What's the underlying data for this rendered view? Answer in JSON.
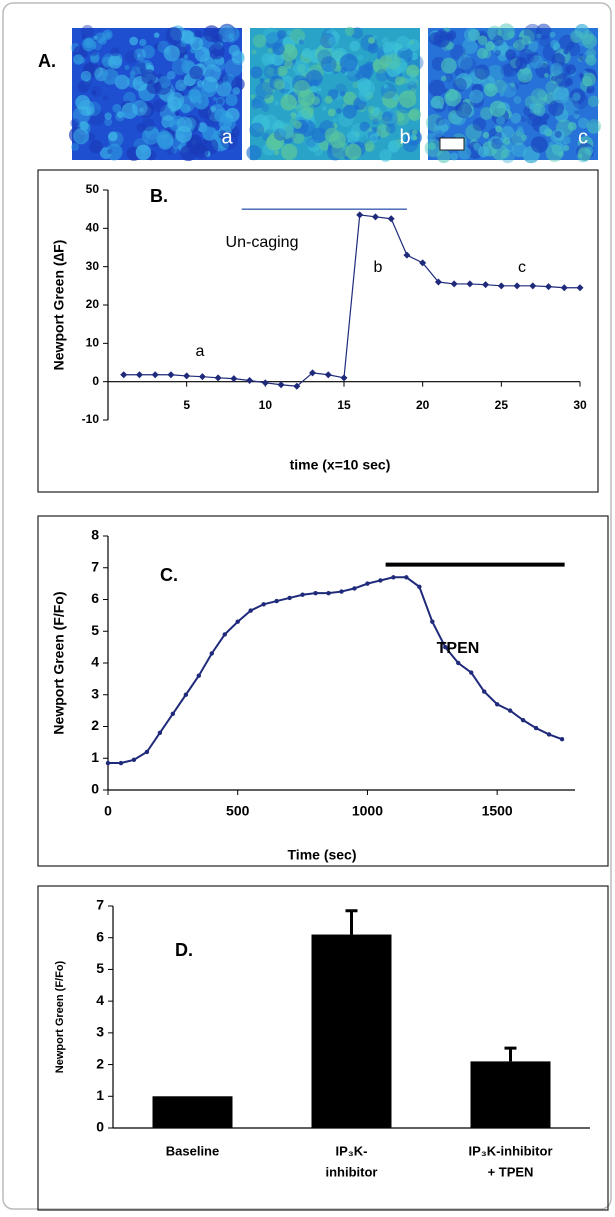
{
  "panel_a": {
    "label": "A.",
    "image_labels": [
      "a",
      "b",
      "c"
    ]
  },
  "chart_data": [
    {
      "type": "line",
      "title": "B.",
      "x_label": "time (x=10 sec)",
      "y_label": "Newport Green  (∆F)",
      "x": [
        1,
        2,
        3,
        4,
        5,
        6,
        7,
        8,
        9,
        10,
        11,
        12,
        13,
        14,
        15,
        16,
        17,
        18,
        19,
        20,
        21,
        22,
        23,
        24,
        25,
        26,
        27,
        28,
        29,
        30
      ],
      "series": [
        {
          "color": "#1f2a7a",
          "values": [
            1.8,
            1.8,
            1.8,
            1.8,
            1.5,
            1.3,
            1.0,
            0.8,
            0.3,
            -0.3,
            -0.8,
            -1.2,
            2.3,
            1.8,
            1.0,
            43.5,
            43,
            42.5,
            33,
            31,
            26,
            25.5,
            25.5,
            25.3,
            25,
            25,
            25,
            24.8,
            24.5,
            24.5
          ]
        }
      ],
      "xlim": [
        0,
        30
      ],
      "ylim": [
        -10,
        50
      ],
      "xticks": [
        5,
        10,
        15,
        20,
        25,
        30
      ],
      "yticks": [
        -10,
        0,
        10,
        20,
        30,
        40,
        50
      ],
      "span": {
        "x": [
          8.5,
          19
        ],
        "y": 45,
        "color": "#3a5fb0"
      },
      "annotations": [
        "Un-caging",
        "a",
        "b",
        "c"
      ]
    },
    {
      "type": "line",
      "title": "C.",
      "x_label": "Time (sec)",
      "y_label": "Newport Green  (F/Fo)",
      "x": [
        0,
        50,
        100,
        150,
        200,
        250,
        300,
        350,
        400,
        450,
        500,
        550,
        600,
        650,
        700,
        750,
        800,
        850,
        900,
        950,
        1000,
        1050,
        1100,
        1150,
        1200,
        1250,
        1300,
        1350,
        1400,
        1450,
        1500,
        1550,
        1600,
        1650,
        1700,
        1750
      ],
      "series": [
        {
          "color": "#1f2a7a",
          "values": [
            0.85,
            0.85,
            0.95,
            1.2,
            1.8,
            2.4,
            3.0,
            3.6,
            4.3,
            4.9,
            5.3,
            5.65,
            5.85,
            5.95,
            6.05,
            6.15,
            6.2,
            6.2,
            6.25,
            6.35,
            6.5,
            6.6,
            6.7,
            6.7,
            6.4,
            5.3,
            4.5,
            4.0,
            3.7,
            3.1,
            2.7,
            2.5,
            2.2,
            1.95,
            1.75,
            1.6
          ]
        }
      ],
      "xlim": [
        0,
        1800
      ],
      "ylim": [
        0,
        8
      ],
      "xticks": [
        0,
        500,
        1000,
        1500
      ],
      "yticks": [
        0,
        1,
        2,
        3,
        4,
        5,
        6,
        7,
        8
      ],
      "span": {
        "x": [
          1070,
          1760
        ],
        "y": 7.1,
        "color": "#000000"
      },
      "annotations": [
        "TPEN"
      ]
    },
    {
      "type": "bar",
      "title": "D.",
      "y_label": "Newport Green (F/Fo)",
      "categories": [
        [
          "Baseline"
        ],
        [
          "IP₃K-",
          "inhibitor"
        ],
        [
          "IP₃K-inhibitor",
          "+ TPEN"
        ]
      ],
      "values": [
        1,
        6.1,
        2.1
      ],
      "errors": [
        null,
        0.75,
        0.42
      ],
      "color": "#000000",
      "ylim": [
        0,
        7
      ],
      "yticks": [
        0,
        1,
        2,
        3,
        4,
        5,
        6,
        7
      ]
    }
  ]
}
